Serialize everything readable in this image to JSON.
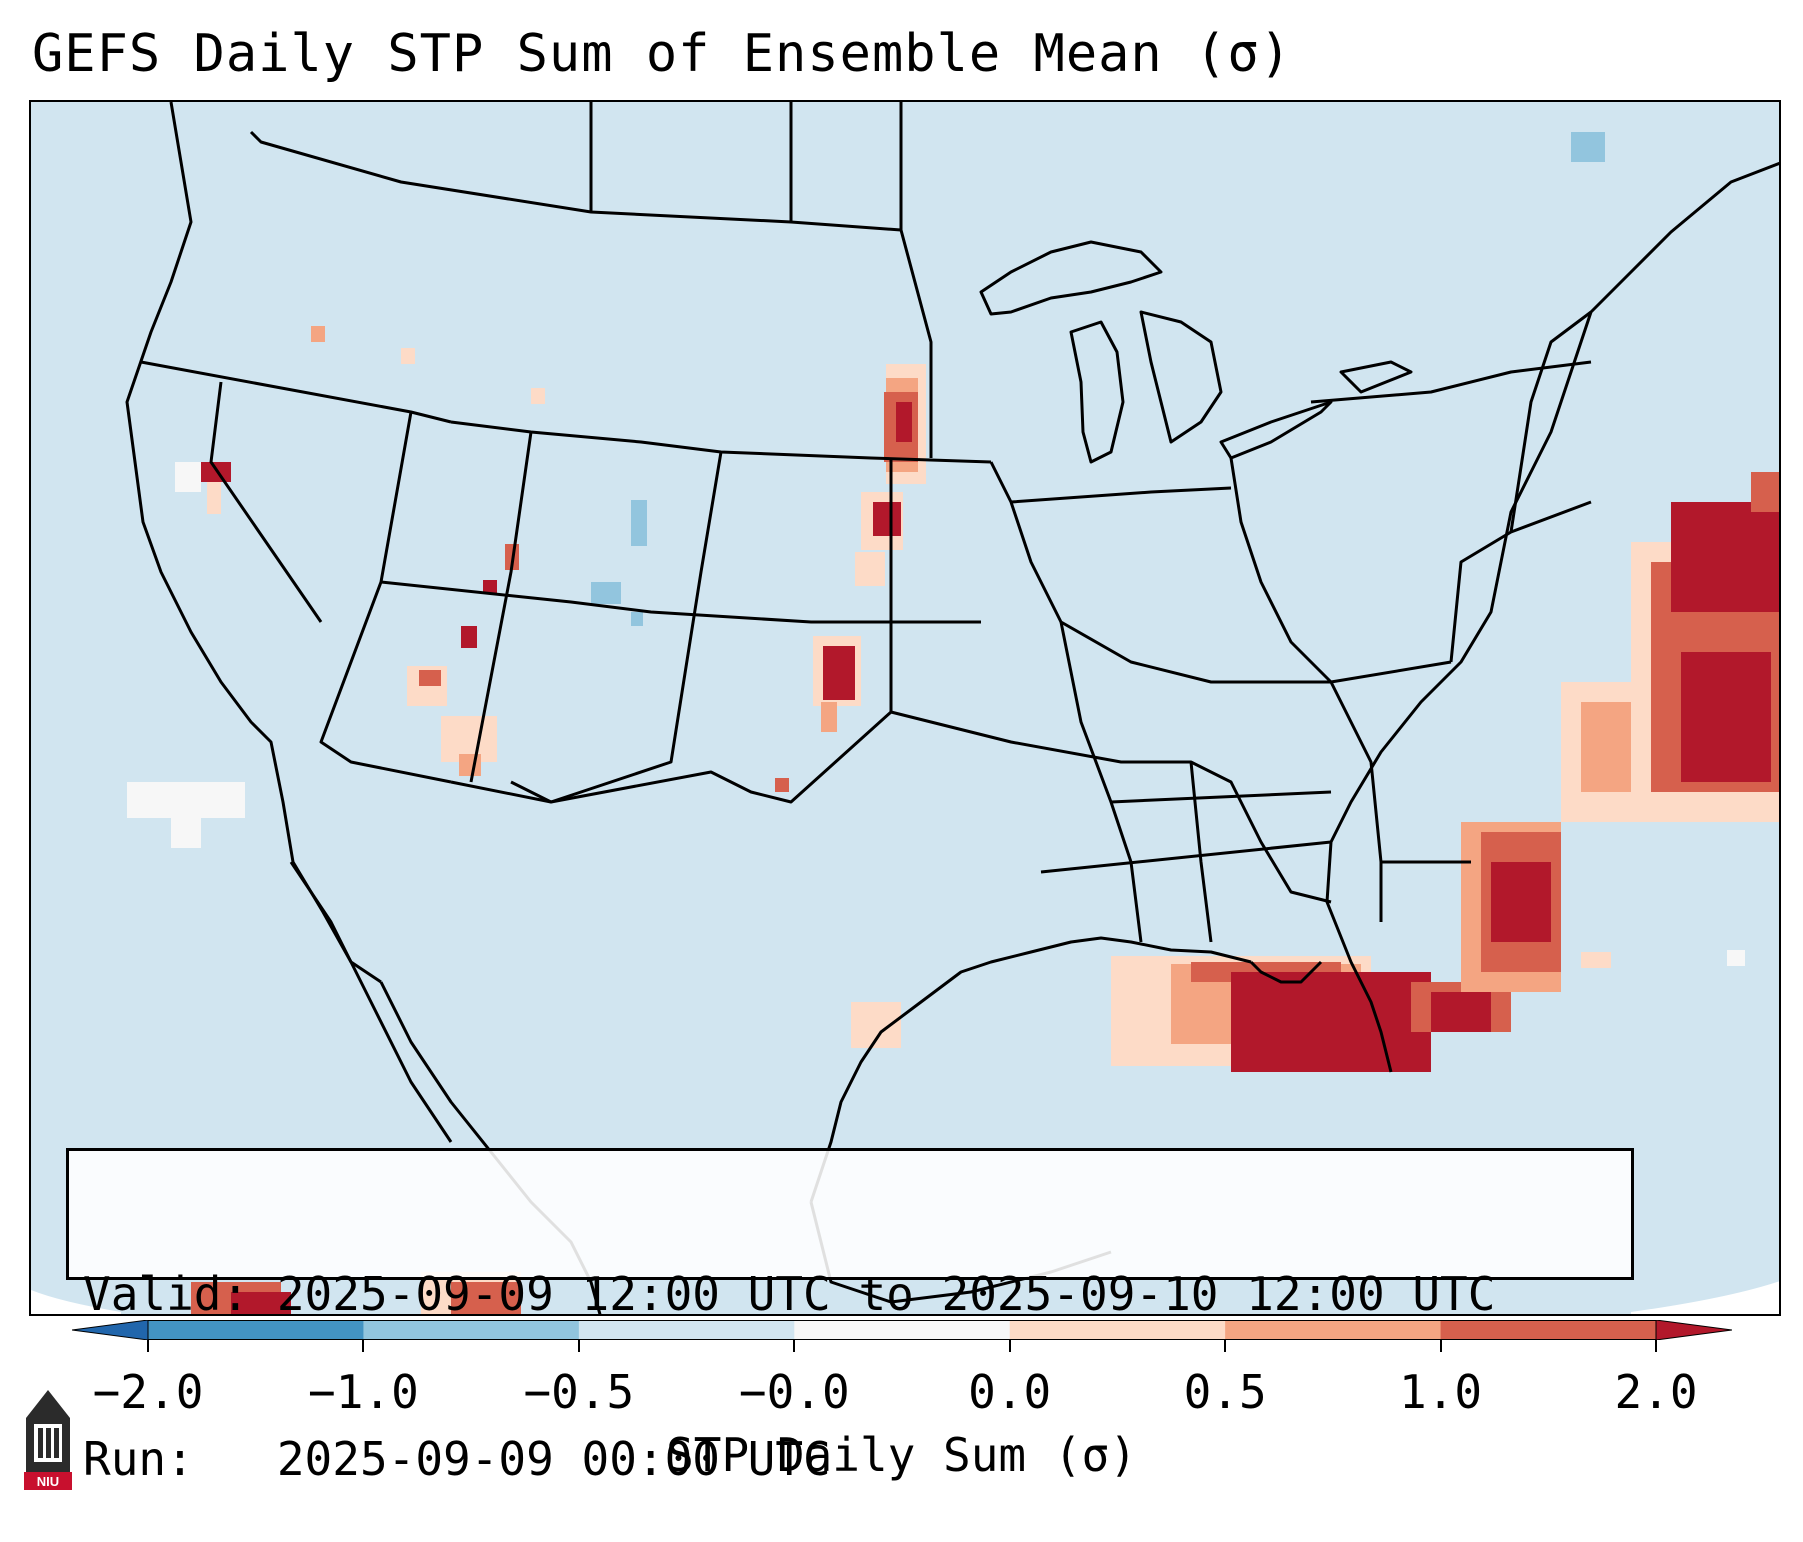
{
  "title": "GEFS Daily STP Sum of Ensemble Mean (σ)",
  "info": {
    "valid_line": "Valid: 2025-09-09 12:00 UTC to 2025-09-10 12:00 UTC",
    "run_line": "Run:   2025-09-09 00:00 UTC"
  },
  "colorbar": {
    "label": "STP Daily Sum (σ)",
    "ticks": [
      "−2.0",
      "−1.0",
      "−0.5",
      "−0.0",
      "0.0",
      "0.5",
      "1.0",
      "2.0"
    ],
    "colors": [
      "#4393c3",
      "#92c5de",
      "#d1e5f0",
      "#f7f7f7",
      "#fddbc7",
      "#f4a582",
      "#d6604d"
    ],
    "under_color": "#2166ac",
    "over_color": "#b2182b"
  },
  "map": {
    "background_color": "#d1e5f0",
    "border_color": "#000000"
  },
  "logo": {
    "text": "NIU"
  }
}
